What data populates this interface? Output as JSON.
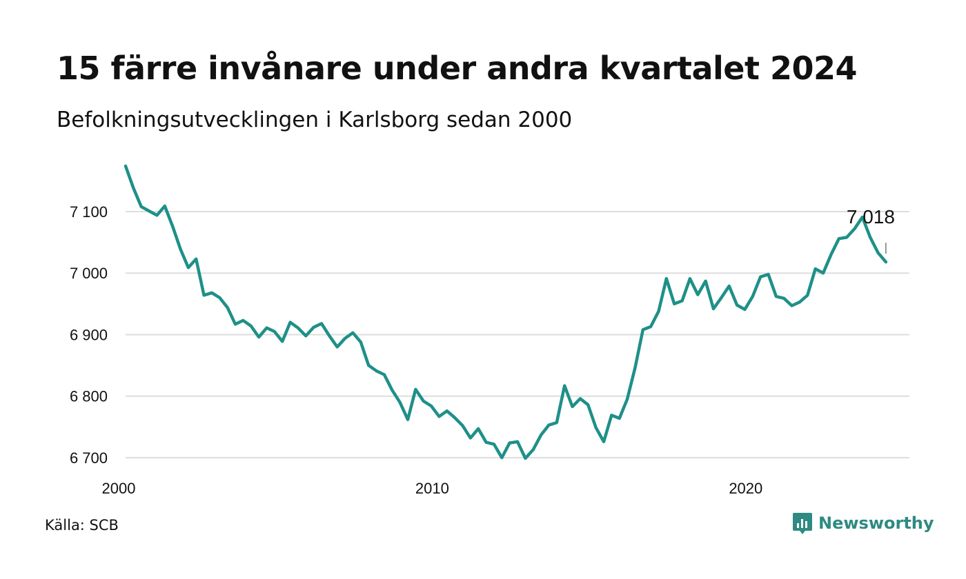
{
  "title": "15 färre invånare under andra kvartalet 2024",
  "subtitle": "Befolkningsutvecklingen i Karlsborg sedan 2000",
  "source": "Källa: SCB",
  "brand": {
    "name": "Newsworthy",
    "icon": "newsworthy-logo-icon"
  },
  "colors": {
    "line": "#1e9088",
    "grid": "#dddddd",
    "text": "#111111",
    "brand": "#2e8a82"
  },
  "chart_data": {
    "type": "line",
    "title": "15 färre invånare under andra kvartalet 2024",
    "subtitle": "Befolkningsutvecklingen i Karlsborg sedan 2000",
    "xlabel": "",
    "ylabel": "",
    "xlim": [
      2000,
      2025
    ],
    "ylim": [
      6700,
      7175
    ],
    "yticks": [
      6700,
      6800,
      6900,
      7000,
      7100
    ],
    "ytick_labels": [
      "6 700",
      "6 800",
      "6 900",
      "7 000",
      "7 100"
    ],
    "xticks": [
      2000,
      2010,
      2020
    ],
    "xtick_labels": [
      "2000",
      "2010",
      "2020"
    ],
    "grid": true,
    "annotation": {
      "label": "7 018",
      "value": 7018
    },
    "x": [
      2000.0,
      2000.25,
      2000.5,
      2000.75,
      2001.0,
      2001.25,
      2001.5,
      2001.75,
      2002.0,
      2002.25,
      2002.5,
      2002.75,
      2003.0,
      2003.25,
      2003.5,
      2003.75,
      2004.0,
      2004.25,
      2004.5,
      2004.75,
      2005.0,
      2005.25,
      2005.5,
      2005.75,
      2006.0,
      2006.25,
      2006.5,
      2006.75,
      2007.0,
      2007.25,
      2007.5,
      2007.75,
      2008.0,
      2008.25,
      2008.5,
      2008.75,
      2009.0,
      2009.25,
      2009.5,
      2009.75,
      2010.0,
      2010.25,
      2010.5,
      2010.75,
      2011.0,
      2011.25,
      2011.5,
      2011.75,
      2012.0,
      2012.25,
      2012.5,
      2012.75,
      2013.0,
      2013.25,
      2013.5,
      2013.75,
      2014.0,
      2014.25,
      2014.5,
      2014.75,
      2015.0,
      2015.25,
      2015.5,
      2015.75,
      2016.0,
      2016.25,
      2016.5,
      2016.75,
      2017.0,
      2017.25,
      2017.5,
      2017.75,
      2018.0,
      2018.25,
      2018.5,
      2018.75,
      2019.0,
      2019.25,
      2019.5,
      2019.75,
      2020.0,
      2020.25,
      2020.5,
      2020.75,
      2021.0,
      2021.25,
      2021.5,
      2021.75,
      2022.0,
      2022.25,
      2022.5,
      2022.75,
      2023.0,
      2023.25,
      2023.5,
      2023.75,
      2024.0,
      2024.25
    ],
    "series": [
      {
        "values": [
          7174,
          7138,
          7108,
          7101,
          7094,
          7109,
          7076,
          7039,
          7009,
          7023,
          6964,
          6968,
          6960,
          6944,
          6917,
          6923,
          6914,
          6896,
          6911,
          6905,
          6889,
          6920,
          6911,
          6898,
          6912,
          6918,
          6898,
          6880,
          6894,
          6903,
          6888,
          6850,
          6841,
          6835,
          6810,
          6790,
          6762,
          6811,
          6792,
          6784,
          6767,
          6776,
          6765,
          6752,
          6732,
          6747,
          6725,
          6722,
          6700,
          6724,
          6726,
          6699,
          6713,
          6737,
          6753,
          6757,
          6817,
          6783,
          6796,
          6786,
          6749,
          6726,
          6769,
          6764,
          6795,
          6846,
          6908,
          6913,
          6938,
          6991,
          6950,
          6955,
          6991,
          6965,
          6987,
          6942,
          6960,
          6979,
          6948,
          6941,
          6962,
          6994,
          6998,
          6962,
          6959,
          6947,
          6953,
          6964,
          7007,
          7000,
          7030,
          7056,
          7058,
          7072,
          7091,
          7058,
          7033,
          7018
        ]
      }
    ]
  }
}
